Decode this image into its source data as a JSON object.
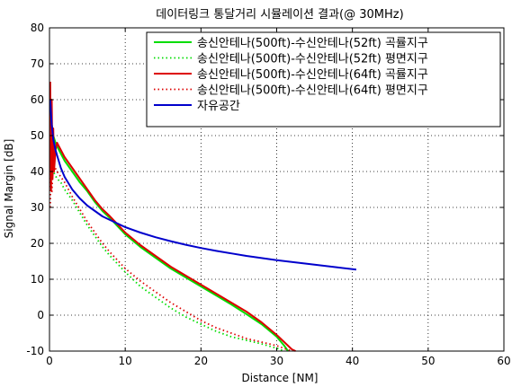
{
  "chart_data": {
    "type": "line",
    "title": "데이터링크 통달거리 시뮬레이션 결과(@ 30MHz)",
    "xlabel": "Distance [NM]",
    "ylabel": "Signal Margin [dB]",
    "xlim": [
      0,
      60
    ],
    "ylim": [
      -10,
      80
    ],
    "xticks": [
      0,
      10,
      20,
      30,
      40,
      50,
      60
    ],
    "yticks": [
      -10,
      0,
      10,
      20,
      30,
      40,
      50,
      60,
      70,
      80
    ],
    "grid": true,
    "legend_position": "top-right",
    "series": [
      {
        "name": "송신안테나(500ft)-수신안테나(52ft) 곡률지구",
        "color": "#00dd00",
        "dash": "solid",
        "x": [
          0.1,
          0.3,
          0.5,
          0.8,
          1,
          1.5,
          2,
          3,
          4,
          5,
          6,
          7,
          8,
          10,
          12,
          14,
          16,
          18,
          20,
          22,
          24,
          26,
          28,
          30,
          31,
          31.5
        ],
        "y": [
          58,
          53,
          50,
          48,
          47,
          45,
          43,
          40,
          37,
          34.5,
          31.5,
          29,
          27,
          22.5,
          19,
          16,
          13,
          10.5,
          8,
          5.5,
          3,
          0.3,
          -2.5,
          -6,
          -8.5,
          -10
        ]
      },
      {
        "name": "송신안테나(500ft)-수신안테나(52ft) 평면지구",
        "color": "#00dd00",
        "dash": "dotted",
        "x": [
          0.1,
          0.3,
          0.5,
          1,
          1.5,
          2,
          3,
          4,
          5,
          6,
          7,
          8,
          10,
          12,
          14,
          16,
          18,
          20,
          22,
          24,
          26,
          28,
          30,
          31
        ],
        "y": [
          40,
          42,
          40,
          38,
          37,
          35,
          32,
          28.5,
          25,
          22,
          19,
          16.5,
          12,
          8,
          5,
          2,
          -0.5,
          -2.5,
          -4.5,
          -6,
          -7,
          -8,
          -9.2,
          -10
        ]
      },
      {
        "name": "송신안테나(500ft)-수신안테나(64ft) 곡률지구",
        "color": "#dd0000",
        "dash": "solid",
        "x": [
          0.1,
          0.2,
          0.3,
          0.4,
          0.5,
          0.6,
          0.8,
          1,
          1.5,
          2,
          3,
          4,
          5,
          6,
          7,
          8,
          10,
          12,
          14,
          16,
          18,
          20,
          22,
          24,
          26,
          28,
          30,
          31,
          32,
          32.5
        ],
        "y": [
          65,
          35,
          60,
          38,
          52,
          40,
          46,
          48,
          46,
          44,
          41,
          38,
          35,
          32,
          29.5,
          27.5,
          23,
          19.5,
          16.5,
          13.5,
          11,
          8.5,
          6,
          3.5,
          1,
          -2,
          -5.5,
          -7.5,
          -9.5,
          -10
        ]
      },
      {
        "name": "송신안테나(500ft)-수신안테나(64ft) 평면지구",
        "color": "#dd0000",
        "dash": "dotted",
        "x": [
          0.1,
          0.2,
          0.3,
          0.5,
          1,
          1.5,
          2,
          3,
          4,
          5,
          6,
          7,
          8,
          10,
          12,
          14,
          16,
          18,
          20,
          22,
          24,
          26,
          28,
          30,
          32
        ],
        "y": [
          30,
          42,
          34,
          42,
          40,
          38.5,
          37,
          33,
          29.5,
          26,
          23,
          20,
          17.5,
          13,
          9.5,
          6.5,
          3.5,
          1,
          -1.5,
          -3.5,
          -5,
          -6.5,
          -7.5,
          -8.5,
          -10
        ]
      },
      {
        "name": "자유공간",
        "color": "#0000cc",
        "dash": "solid",
        "x": [
          0.1,
          0.2,
          0.3,
          0.5,
          0.8,
          1,
          1.5,
          2,
          3,
          4,
          5,
          6,
          7,
          8,
          10,
          12,
          14,
          16,
          18,
          20,
          22,
          24,
          26,
          28,
          30,
          32,
          34,
          36,
          38,
          40.5
        ],
        "y": [
          60,
          56,
          53,
          49,
          46,
          44.5,
          41,
          38.5,
          35,
          32.5,
          30.5,
          29,
          27.5,
          26.5,
          24.5,
          23,
          21.7,
          20.6,
          19.6,
          18.7,
          17.9,
          17.2,
          16.5,
          15.9,
          15.3,
          14.8,
          14.3,
          13.8,
          13.3,
          12.7
        ]
      }
    ]
  }
}
